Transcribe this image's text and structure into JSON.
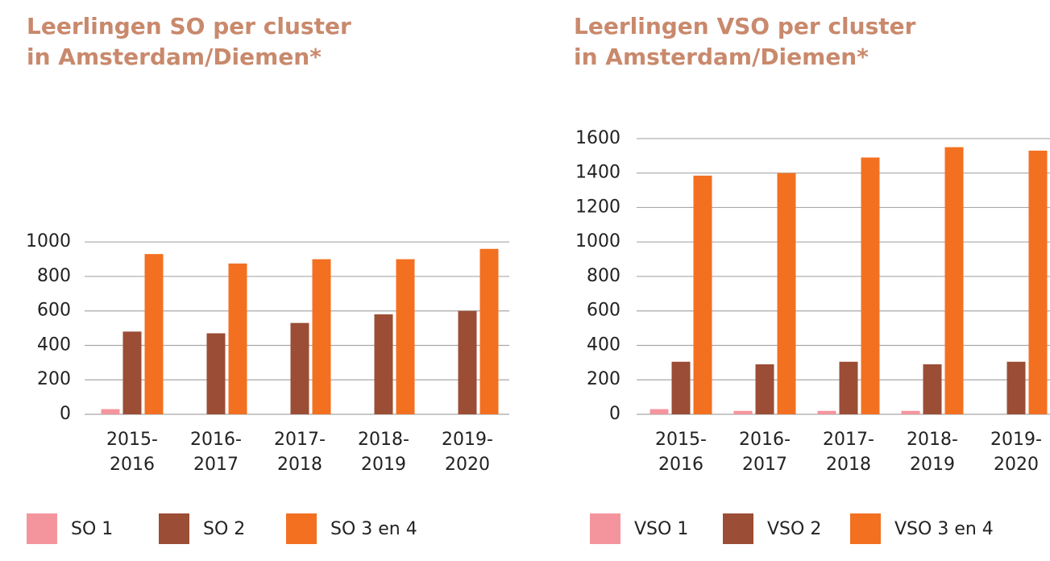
{
  "chart_data": [
    {
      "type": "bar",
      "title": [
        "Leerlingen SO per cluster",
        "in Amsterdam/Diemen*"
      ],
      "categories": [
        "2015-2016",
        "2016-2017",
        "2017-2018",
        "2018-2019",
        "2019-2020"
      ],
      "series": [
        {
          "name": "SO 1",
          "color": "#f4959d",
          "values": [
            30,
            0,
            0,
            0,
            0
          ]
        },
        {
          "name": "SO 2",
          "color": "#9b4d35",
          "values": [
            480,
            470,
            530,
            580,
            600
          ]
        },
        {
          "name": "SO 3 en 4",
          "color": "#f37021",
          "values": [
            930,
            875,
            900,
            900,
            960
          ]
        }
      ],
      "ylim": [
        0,
        1000
      ],
      "yticks": [
        0,
        200,
        400,
        600,
        800,
        1000
      ],
      "grid": true
    },
    {
      "type": "bar",
      "title": [
        "Leerlingen VSO per cluster",
        "in Amsterdam/Diemen*"
      ],
      "categories": [
        "2015-2016",
        "2016-2017",
        "2017-2018",
        "2018-2019",
        "2019-2020"
      ],
      "series": [
        {
          "name": "VSO 1",
          "color": "#f4959d",
          "values": [
            30,
            20,
            20,
            20,
            0
          ]
        },
        {
          "name": "VSO 2",
          "color": "#9b4d35",
          "values": [
            305,
            290,
            305,
            290,
            305
          ]
        },
        {
          "name": "VSO 3 en 4",
          "color": "#f37021",
          "values": [
            1385,
            1400,
            1490,
            1550,
            1530
          ]
        }
      ],
      "ylim": [
        0,
        1600
      ],
      "yticks": [
        0,
        200,
        400,
        600,
        800,
        1000,
        1200,
        1400,
        1600
      ],
      "grid": true
    }
  ]
}
